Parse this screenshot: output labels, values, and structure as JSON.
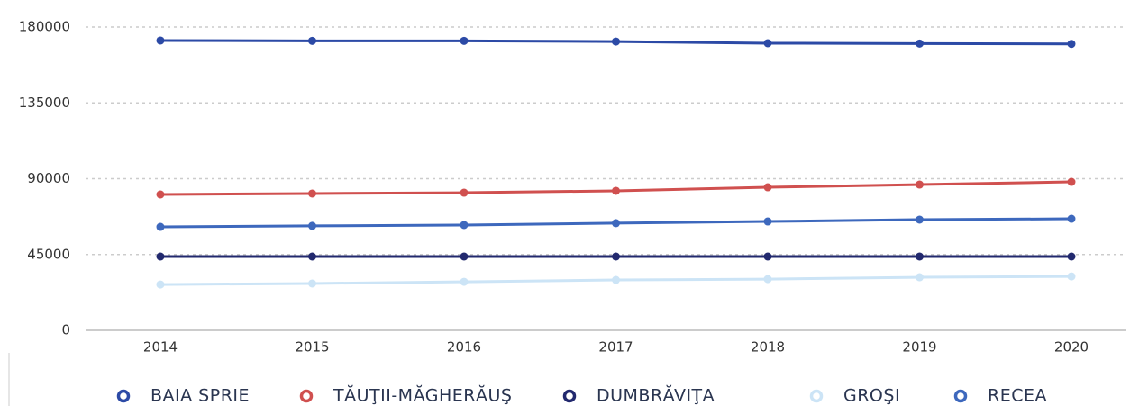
{
  "chart_data": {
    "type": "line",
    "categories": [
      "2014",
      "2015",
      "2016",
      "2017",
      "2018",
      "2019",
      "2020"
    ],
    "series": [
      {
        "name": "BAIA SPRIE",
        "color": "#2c4aa6",
        "values": [
          172000,
          171800,
          171800,
          171400,
          170400,
          170200,
          170000
        ]
      },
      {
        "name": "TĂUŢII-MĂGHERĂUŞ",
        "color": "#d0504f",
        "values": [
          80650,
          81200,
          81700,
          82800,
          84900,
          86500,
          88100
        ]
      },
      {
        "name": "DUMBRĂVIŢA",
        "color": "#22296e",
        "values": [
          43800,
          43800,
          43800,
          43800,
          43800,
          43800,
          43800
        ]
      },
      {
        "name": "GROŞI",
        "color": "#cce4f6",
        "values": [
          27200,
          27800,
          28800,
          29900,
          30400,
          31500,
          32000
        ]
      },
      {
        "name": "RECEA",
        "color": "#3d68bd",
        "values": [
          61400,
          62000,
          62500,
          63600,
          64600,
          65700,
          66200
        ]
      }
    ],
    "ylim": [
      0,
      180000
    ],
    "yticks": [
      0,
      45000,
      90000,
      135000,
      180000
    ],
    "grid": true
  }
}
